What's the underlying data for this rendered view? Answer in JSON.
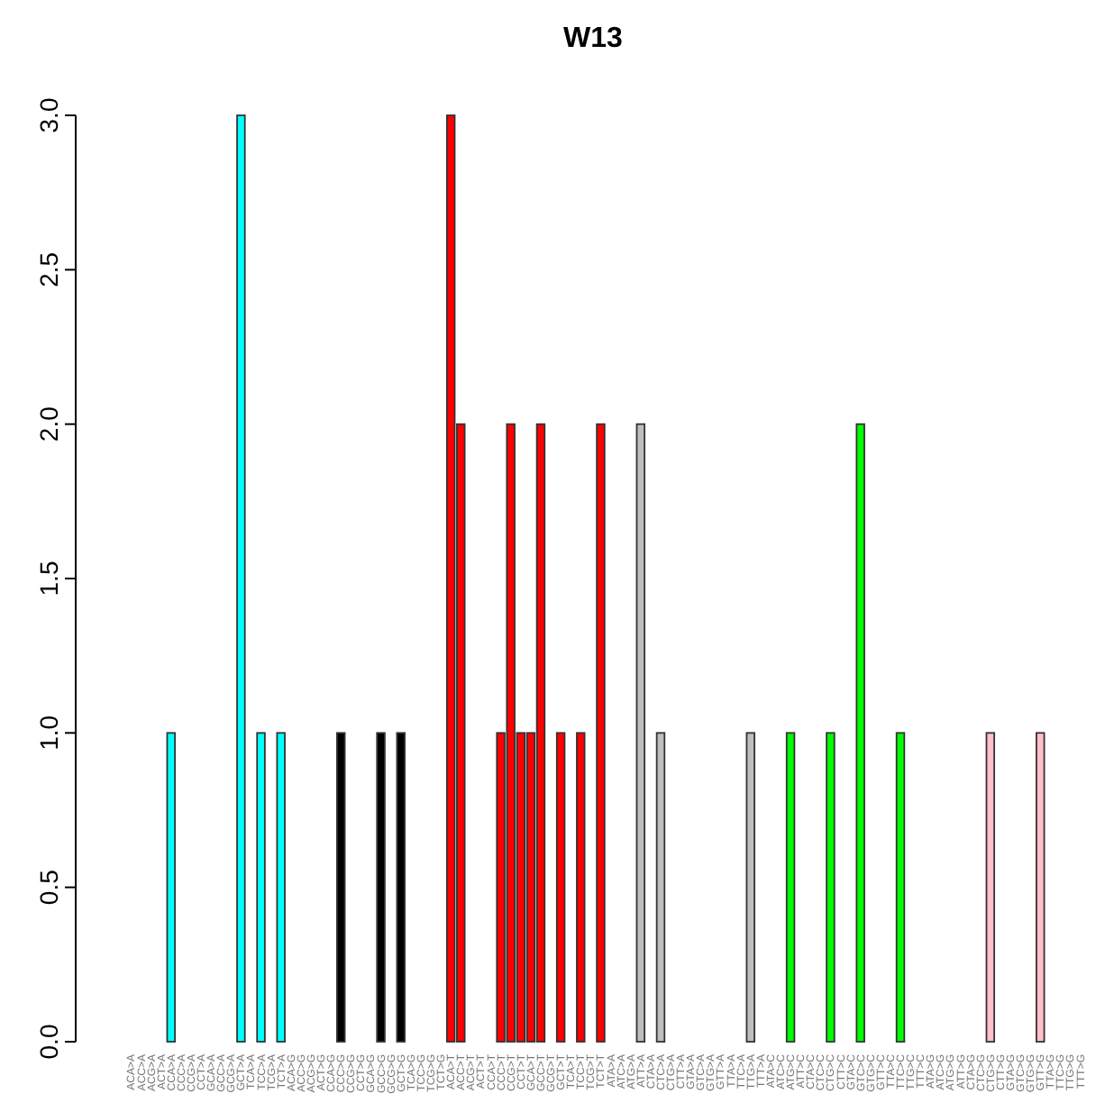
{
  "chart_data": {
    "type": "bar",
    "title": "W13",
    "categories": [
      "ACA>A",
      "ACC>A",
      "ACG>A",
      "ACT>A",
      "CCA>A",
      "CCC>A",
      "CCG>A",
      "CCT>A",
      "GCA>A",
      "GCC>A",
      "GCG>A",
      "GCT>A",
      "TCA>A",
      "TCC>A",
      "TCG>A",
      "TCT>A",
      "ACA>G",
      "ACC>G",
      "ACG>G",
      "ACT>G",
      "CCA>G",
      "CCC>G",
      "CCG>G",
      "CCT>G",
      "GCA>G",
      "GCC>G",
      "GCG>G",
      "GCT>G",
      "TCA>G",
      "TCC>G",
      "TCG>G",
      "TCT>G",
      "ACA>T",
      "ACC>T",
      "ACG>T",
      "ACT>T",
      "CCA>T",
      "CCC>T",
      "CCG>T",
      "CCT>T",
      "GCA>T",
      "GCC>T",
      "GCG>T",
      "GCT>T",
      "TCA>T",
      "TCC>T",
      "TCG>T",
      "TCT>T",
      "ATA>A",
      "ATC>A",
      "ATG>A",
      "ATT>A",
      "CTA>A",
      "CTC>A",
      "CTG>A",
      "CTT>A",
      "GTA>A",
      "GTC>A",
      "GTG>A",
      "GTT>A",
      "TTA>A",
      "TTC>A",
      "TTG>A",
      "TTT>A",
      "ATA>C",
      "ATC>C",
      "ATG>C",
      "ATT>C",
      "CTA>C",
      "CTC>C",
      "CTG>C",
      "CTT>C",
      "GTA>C",
      "GTC>C",
      "GTG>C",
      "GTT>C",
      "TTA>C",
      "TTC>C",
      "TTG>C",
      "TTT>C",
      "ATA>G",
      "ATC>G",
      "ATG>G",
      "ATT>G",
      "CTA>G",
      "CTC>G",
      "CTG>G",
      "CTT>G",
      "GTA>G",
      "GTC>G",
      "GTG>G",
      "GTT>G",
      "TTA>G",
      "TTC>G",
      "TTG>G",
      "TTT>G"
    ],
    "values": [
      0,
      0,
      0,
      0,
      1,
      0,
      0,
      0,
      0,
      0,
      0,
      3,
      0,
      1,
      0,
      1,
      0,
      0,
      0,
      0,
      0,
      1,
      0,
      0,
      0,
      1,
      0,
      1,
      0,
      0,
      0,
      0,
      3,
      2,
      0,
      0,
      0,
      1,
      2,
      1,
      1,
      2,
      0,
      1,
      0,
      1,
      0,
      2,
      0,
      0,
      0,
      2,
      0,
      1,
      0,
      0,
      0,
      0,
      0,
      0,
      0,
      0,
      1,
      0,
      0,
      0,
      1,
      0,
      0,
      0,
      1,
      0,
      0,
      2,
      0,
      0,
      0,
      1,
      0,
      0,
      0,
      0,
      0,
      0,
      0,
      0,
      1,
      0,
      0,
      0,
      0,
      1,
      0,
      0,
      0,
      0
    ],
    "colors": [
      "#00ffff",
      "#00ffff",
      "#00ffff",
      "#00ffff",
      "#00ffff",
      "#00ffff",
      "#00ffff",
      "#00ffff",
      "#00ffff",
      "#00ffff",
      "#00ffff",
      "#00ffff",
      "#00ffff",
      "#00ffff",
      "#00ffff",
      "#00ffff",
      "#000000",
      "#000000",
      "#000000",
      "#000000",
      "#000000",
      "#000000",
      "#000000",
      "#000000",
      "#000000",
      "#000000",
      "#000000",
      "#000000",
      "#000000",
      "#000000",
      "#000000",
      "#000000",
      "#ff0000",
      "#ff0000",
      "#ff0000",
      "#ff0000",
      "#ff0000",
      "#ff0000",
      "#ff0000",
      "#ff0000",
      "#ff0000",
      "#ff0000",
      "#ff0000",
      "#ff0000",
      "#ff0000",
      "#ff0000",
      "#ff0000",
      "#ff0000",
      "#bebebe",
      "#bebebe",
      "#bebebe",
      "#bebebe",
      "#bebebe",
      "#bebebe",
      "#bebebe",
      "#bebebe",
      "#bebebe",
      "#bebebe",
      "#bebebe",
      "#bebebe",
      "#bebebe",
      "#bebebe",
      "#bebebe",
      "#bebebe",
      "#00ff00",
      "#00ff00",
      "#00ff00",
      "#00ff00",
      "#00ff00",
      "#00ff00",
      "#00ff00",
      "#00ff00",
      "#00ff00",
      "#00ff00",
      "#00ff00",
      "#00ff00",
      "#00ff00",
      "#00ff00",
      "#00ff00",
      "#00ff00",
      "#ffc0cb",
      "#ffc0cb",
      "#ffc0cb",
      "#ffc0cb",
      "#ffc0cb",
      "#ffc0cb",
      "#ffc0cb",
      "#ffc0cb",
      "#ffc0cb",
      "#ffc0cb",
      "#ffc0cb",
      "#ffc0cb",
      "#ffc0cb",
      "#ffc0cb",
      "#ffc0cb",
      "#ffc0cb"
    ],
    "ylim": [
      0,
      3
    ],
    "yticks": [
      {
        "value": 0,
        "label": "0.0"
      },
      {
        "value": 0.5,
        "label": "0.5"
      },
      {
        "value": 1,
        "label": "1.0"
      },
      {
        "value": 1.5,
        "label": "1.5"
      },
      {
        "value": 2,
        "label": "2.0"
      },
      {
        "value": 2.5,
        "label": "2.5"
      },
      {
        "value": 3,
        "label": "3.0"
      }
    ]
  }
}
